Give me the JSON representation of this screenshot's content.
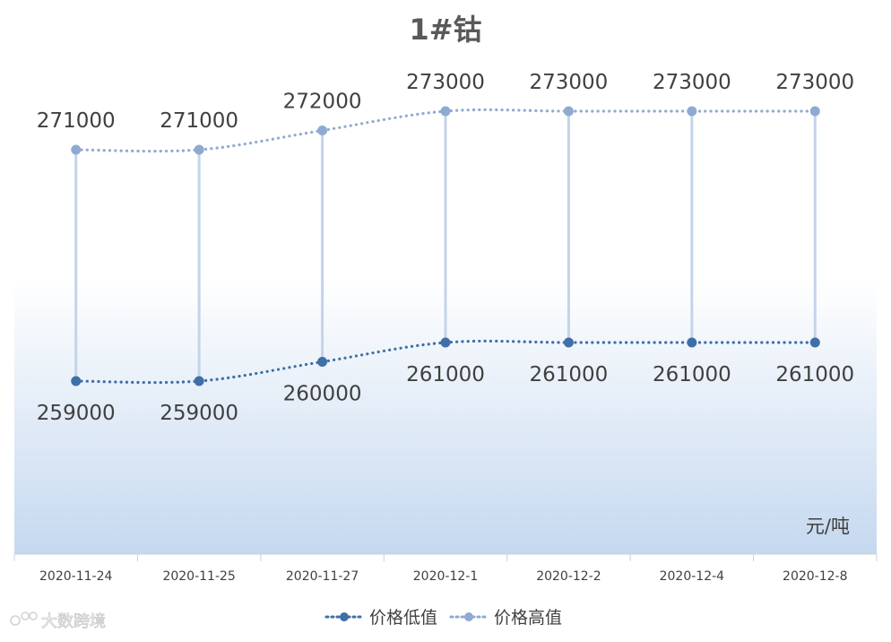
{
  "chart_data": {
    "type": "line",
    "title": "1#钴",
    "unit_label": "元/吨",
    "categories": [
      "2020-11-24",
      "2020-11-25",
      "2020-11-27",
      "2020-12-1",
      "2020-12-2",
      "2020-12-4",
      "2020-12-8"
    ],
    "series": [
      {
        "name": "价格低值",
        "values": [
          259000,
          259000,
          260000,
          261000,
          261000,
          261000,
          261000
        ],
        "color": "#3E6FA8"
      },
      {
        "name": "价格高值",
        "values": [
          271000,
          271000,
          272000,
          273000,
          273000,
          273000,
          273000
        ],
        "color": "#8FAAD0"
      }
    ],
    "high_low_lines": true,
    "line_style": "dotted",
    "data_labels": true,
    "legend_position": "bottom",
    "background_gradient": [
      "#ffffff",
      "#C5D8EF"
    ]
  },
  "watermark": "大数跨境"
}
